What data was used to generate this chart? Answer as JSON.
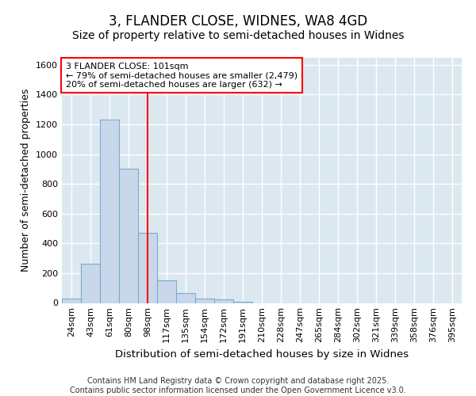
{
  "title1": "3, FLANDER CLOSE, WIDNES, WA8 4GD",
  "title2": "Size of property relative to semi-detached houses in Widnes",
  "xlabel": "Distribution of semi-detached houses by size in Widnes",
  "ylabel": "Number of semi-detached properties",
  "categories": [
    "24sqm",
    "43sqm",
    "61sqm",
    "80sqm",
    "98sqm",
    "117sqm",
    "135sqm",
    "154sqm",
    "172sqm",
    "191sqm",
    "210sqm",
    "228sqm",
    "247sqm",
    "265sqm",
    "284sqm",
    "302sqm",
    "321sqm",
    "339sqm",
    "358sqm",
    "376sqm",
    "395sqm"
  ],
  "values": [
    27,
    265,
    1230,
    900,
    470,
    150,
    65,
    30,
    22,
    10,
    0,
    0,
    0,
    0,
    0,
    0,
    0,
    0,
    0,
    0,
    0
  ],
  "bar_color": "#c8d8ea",
  "bar_edge_color": "#7baad0",
  "vline_index": 4,
  "annotation_text": "3 FLANDER CLOSE: 101sqm\n← 79% of semi-detached houses are smaller (2,479)\n20% of semi-detached houses are larger (632) →",
  "annotation_box_color": "white",
  "annotation_box_edge": "red",
  "vline_color": "red",
  "ylim": [
    0,
    1650
  ],
  "yticks": [
    0,
    200,
    400,
    600,
    800,
    1000,
    1200,
    1400,
    1600
  ],
  "background_color": "#dce8f0",
  "grid_color": "white",
  "footer": "Contains HM Land Registry data © Crown copyright and database right 2025.\nContains public sector information licensed under the Open Government Licence v3.0.",
  "title1_fontsize": 12,
  "title2_fontsize": 10,
  "xlabel_fontsize": 9.5,
  "ylabel_fontsize": 9,
  "annotation_fontsize": 8,
  "footer_fontsize": 7,
  "tick_fontsize": 8
}
